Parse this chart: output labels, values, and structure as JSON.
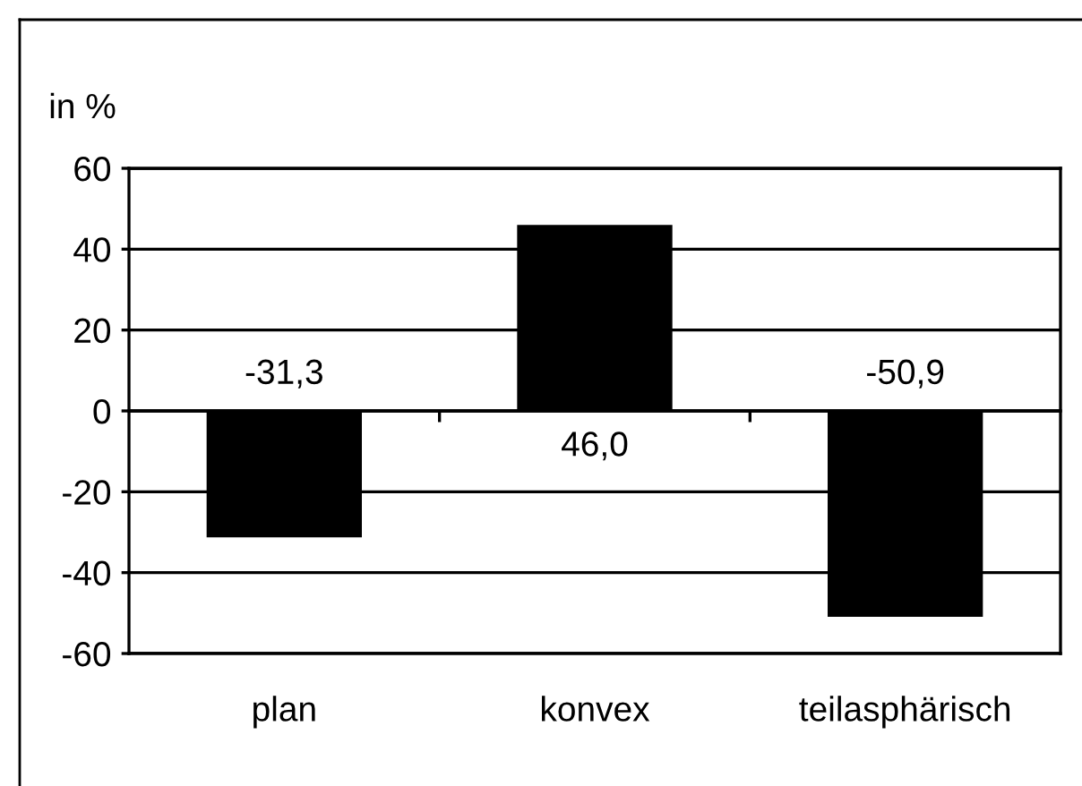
{
  "chart_data": {
    "type": "bar",
    "ylabel": "in %",
    "categories": [
      "plan",
      "konvex",
      "teilasphärisch"
    ],
    "values": [
      -31.3,
      46.0,
      -50.9
    ],
    "color": "#000000",
    "value_labels": [
      "-31,3",
      "46,0",
      "-50,9"
    ],
    "ylim": [
      -60,
      60
    ],
    "yticks": [
      -60,
      -40,
      -20,
      0,
      20,
      40,
      60
    ],
    "grid": "y"
  }
}
